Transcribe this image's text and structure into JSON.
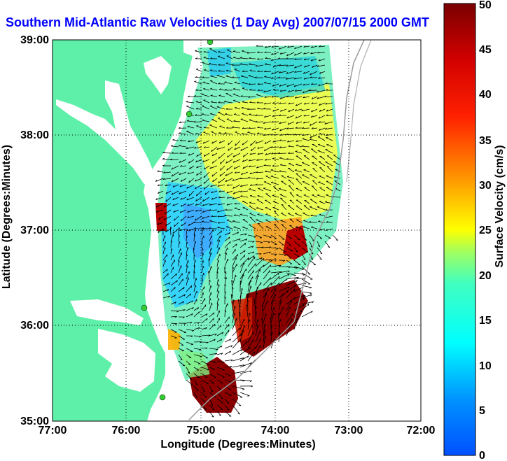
{
  "title": "Southern Mid-Atlantic Raw Velocities (1 Day Avg) 2007/07/15 2000 GMT",
  "x_axis": {
    "label": "Longitude (Degrees:Minutes)",
    "ticks": [
      "77:00",
      "76:00",
      "75:00",
      "74:00",
      "73:00",
      "72:00"
    ]
  },
  "y_axis": {
    "label": "Latitude (Degrees:Minutes)",
    "ticks": [
      "39:00",
      "38:00",
      "37:00",
      "36:00",
      "35:00"
    ]
  },
  "colorbar": {
    "label": "Surface Velocity (cm/s)",
    "ticks": [
      "50",
      "45",
      "40",
      "35",
      "30",
      "25",
      "20",
      "15",
      "10",
      "5",
      "0"
    ],
    "min": 0,
    "max": 50,
    "colormap": "jet"
  },
  "colors": {
    "title": "#0000ff",
    "land": "#5ef0a8",
    "water": "#ffffff",
    "grid": "#000000",
    "isobath": "#9a9a9a",
    "site_marker": "#33cc33"
  },
  "map_extent": {
    "lon_min": -77,
    "lon_max": -72,
    "lat_min": 35,
    "lat_max": 39
  },
  "grid": "dotted"
}
